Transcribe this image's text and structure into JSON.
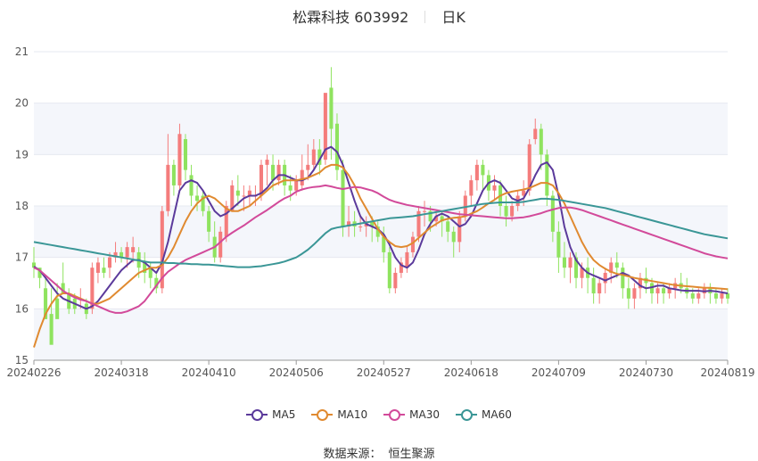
{
  "header": {
    "name": "松霖科技 603992",
    "period": "日K"
  },
  "legend": [
    {
      "label": "MA5",
      "color": "#5b3a9b"
    },
    {
      "label": "MA10",
      "color": "#e08a30"
    },
    {
      "label": "MA30",
      "color": "#d24a9a"
    },
    {
      "label": "MA60",
      "color": "#3a9696"
    }
  ],
  "source": {
    "label": "数据来源：",
    "value": "恒生聚源"
  },
  "colors": {
    "up": "#f47c7c",
    "down": "#8fe35f",
    "grid": "#e6e9f0",
    "band": "#f4f6fb"
  },
  "chart_data": {
    "type": "candlestick",
    "ylim": [
      15,
      21
    ],
    "yticks": [
      15,
      16,
      17,
      18,
      19,
      20,
      21
    ],
    "xticks": [
      "20240226",
      "20240318",
      "20240410",
      "20240506",
      "20240527",
      "20240618",
      "20240709",
      "20240730",
      "20240819"
    ],
    "xtick_index": [
      0,
      15,
      30,
      45,
      60,
      75,
      90,
      105,
      119
    ],
    "n_days": 120,
    "candles": [
      [
        16.9,
        17.2,
        16.8,
        16.6
      ],
      [
        16.8,
        16.8,
        16.6,
        16.4
      ],
      [
        16.4,
        16.6,
        15.8,
        15.8
      ],
      [
        15.9,
        16.4,
        15.3,
        15.4
      ],
      [
        16.2,
        16.5,
        15.8,
        16.0
      ],
      [
        16.5,
        16.9,
        16.3,
        16.4
      ],
      [
        16.3,
        16.4,
        16.0,
        15.9
      ],
      [
        16.2,
        16.3,
        16.0,
        15.9
      ],
      [
        16.2,
        16.4,
        16.2,
        16.0
      ],
      [
        16.1,
        16.2,
        15.9,
        15.8
      ],
      [
        16.0,
        16.9,
        16.8,
        15.9
      ],
      [
        16.7,
        17.0,
        16.9,
        16.5
      ],
      [
        16.8,
        17.0,
        16.7,
        16.6
      ],
      [
        16.8,
        17.1,
        17.0,
        16.6
      ],
      [
        17.0,
        17.3,
        17.1,
        16.9
      ],
      [
        17.1,
        17.2,
        17.0,
        16.9
      ],
      [
        17.0,
        17.3,
        17.2,
        16.8
      ],
      [
        17.1,
        17.4,
        17.2,
        16.9
      ],
      [
        17.1,
        17.2,
        16.8,
        16.6
      ],
      [
        16.9,
        17.1,
        16.7,
        16.5
      ],
      [
        16.8,
        16.9,
        16.6,
        16.4
      ],
      [
        16.6,
        16.7,
        16.4,
        16.3
      ],
      [
        16.4,
        18.0,
        17.9,
        16.3
      ],
      [
        17.9,
        19.4,
        18.8,
        17.8
      ],
      [
        18.8,
        18.9,
        18.4,
        18.2
      ],
      [
        18.4,
        19.6,
        19.4,
        18.3
      ],
      [
        19.3,
        19.4,
        18.7,
        18.5
      ],
      [
        18.6,
        18.8,
        18.2,
        18.0
      ],
      [
        18.2,
        18.4,
        18.1,
        17.9
      ],
      [
        18.2,
        18.3,
        17.9,
        17.8
      ],
      [
        17.9,
        18.0,
        17.5,
        17.3
      ],
      [
        17.4,
        17.7,
        17.0,
        16.9
      ],
      [
        17.0,
        17.6,
        17.5,
        16.9
      ],
      [
        17.4,
        18.1,
        18.0,
        17.3
      ],
      [
        17.9,
        18.5,
        18.4,
        17.9
      ],
      [
        18.3,
        18.6,
        18.2,
        18.0
      ],
      [
        18.2,
        18.4,
        18.2,
        17.9
      ],
      [
        18.2,
        18.4,
        18.3,
        18.0
      ],
      [
        18.2,
        18.4,
        18.2,
        18.0
      ],
      [
        18.2,
        18.9,
        18.8,
        18.1
      ],
      [
        18.8,
        19.0,
        18.9,
        18.4
      ],
      [
        18.8,
        19.0,
        18.5,
        18.3
      ],
      [
        18.5,
        18.9,
        18.8,
        18.4
      ],
      [
        18.8,
        18.9,
        18.4,
        18.2
      ],
      [
        18.4,
        18.6,
        18.3,
        18.1
      ],
      [
        18.3,
        18.6,
        18.5,
        18.2
      ],
      [
        18.4,
        19.0,
        18.7,
        18.3
      ],
      [
        18.7,
        19.2,
        18.8,
        18.5
      ],
      [
        18.8,
        19.3,
        19.1,
        18.7
      ],
      [
        19.1,
        19.3,
        18.8,
        18.6
      ],
      [
        18.9,
        20.0,
        20.2,
        18.8
      ],
      [
        20.3,
        20.7,
        19.5,
        18.9
      ],
      [
        19.6,
        19.8,
        18.7,
        18.5
      ],
      [
        18.7,
        18.9,
        17.6,
        17.4
      ],
      [
        17.6,
        18.0,
        17.7,
        17.4
      ],
      [
        17.7,
        17.9,
        17.6,
        17.4
      ],
      [
        17.6,
        17.8,
        17.6,
        17.5
      ],
      [
        17.6,
        17.8,
        17.7,
        17.4
      ],
      [
        17.7,
        17.8,
        17.6,
        17.3
      ],
      [
        17.6,
        17.7,
        17.4,
        17.3
      ],
      [
        17.4,
        17.6,
        17.1,
        16.9
      ],
      [
        17.1,
        17.2,
        16.4,
        16.3
      ],
      [
        16.4,
        16.8,
        16.7,
        16.3
      ],
      [
        16.7,
        17.0,
        16.9,
        16.6
      ],
      [
        16.8,
        17.2,
        17.1,
        16.7
      ],
      [
        17.1,
        17.5,
        17.4,
        17.0
      ],
      [
        17.4,
        18.0,
        17.9,
        17.3
      ],
      [
        17.9,
        18.1,
        17.9,
        17.6
      ],
      [
        17.9,
        18.0,
        17.7,
        17.5
      ],
      [
        17.7,
        17.9,
        17.8,
        17.6
      ],
      [
        17.8,
        17.9,
        17.7,
        17.4
      ],
      [
        17.7,
        17.8,
        17.5,
        17.3
      ],
      [
        17.5,
        17.6,
        17.3,
        17.0
      ],
      [
        17.3,
        17.9,
        17.8,
        17.1
      ],
      [
        17.8,
        18.3,
        18.2,
        17.7
      ],
      [
        18.2,
        18.6,
        18.5,
        18.0
      ],
      [
        18.5,
        18.9,
        18.8,
        18.3
      ],
      [
        18.8,
        18.9,
        18.6,
        18.3
      ],
      [
        18.6,
        18.7,
        18.3,
        18.1
      ],
      [
        18.3,
        18.6,
        18.4,
        18.1
      ],
      [
        18.4,
        18.5,
        18.0,
        17.8
      ],
      [
        18.0,
        18.2,
        17.8,
        17.6
      ],
      [
        17.8,
        18.1,
        18.0,
        17.7
      ],
      [
        18.0,
        18.3,
        18.2,
        17.9
      ],
      [
        18.2,
        18.5,
        18.3,
        18.0
      ],
      [
        18.3,
        19.3,
        19.2,
        18.2
      ],
      [
        19.3,
        19.7,
        19.5,
        19.2
      ],
      [
        19.5,
        19.6,
        19.0,
        18.7
      ],
      [
        19.0,
        19.1,
        18.2,
        18.0
      ],
      [
        18.2,
        18.3,
        17.5,
        17.3
      ],
      [
        17.5,
        17.7,
        17.0,
        16.7
      ],
      [
        17.0,
        17.3,
        16.8,
        16.6
      ],
      [
        16.8,
        17.1,
        17.0,
        16.5
      ],
      [
        17.0,
        17.1,
        16.6,
        16.4
      ],
      [
        16.6,
        16.9,
        16.8,
        16.4
      ],
      [
        16.8,
        17.0,
        16.6,
        16.3
      ],
      [
        16.6,
        16.8,
        16.3,
        16.1
      ],
      [
        16.3,
        16.6,
        16.5,
        16.1
      ],
      [
        16.5,
        16.8,
        16.7,
        16.3
      ],
      [
        16.7,
        17.0,
        16.9,
        16.5
      ],
      [
        16.9,
        17.1,
        16.8,
        16.6
      ],
      [
        16.8,
        16.9,
        16.4,
        16.2
      ],
      [
        16.4,
        16.6,
        16.2,
        16.0
      ],
      [
        16.2,
        16.5,
        16.4,
        16.0
      ],
      [
        16.4,
        16.7,
        16.6,
        16.2
      ],
      [
        16.6,
        16.8,
        16.5,
        16.3
      ],
      [
        16.5,
        16.6,
        16.3,
        16.1
      ],
      [
        16.3,
        16.5,
        16.4,
        16.1
      ],
      [
        16.4,
        16.5,
        16.3,
        16.1
      ],
      [
        16.3,
        16.5,
        16.4,
        16.2
      ],
      [
        16.4,
        16.6,
        16.5,
        16.2
      ],
      [
        16.5,
        16.7,
        16.4,
        16.3
      ],
      [
        16.4,
        16.6,
        16.3,
        16.2
      ],
      [
        16.3,
        16.4,
        16.2,
        16.1
      ],
      [
        16.2,
        16.4,
        16.3,
        16.1
      ],
      [
        16.3,
        16.5,
        16.4,
        16.2
      ],
      [
        16.4,
        16.5,
        16.3,
        16.1
      ],
      [
        16.3,
        16.4,
        16.2,
        16.1
      ],
      [
        16.2,
        16.4,
        16.3,
        16.1
      ],
      [
        16.3,
        16.4,
        16.2,
        16.1
      ]
    ],
    "series": [
      {
        "name": "MA5",
        "values": [
          16.82,
          16.75,
          16.6,
          16.45,
          16.3,
          16.2,
          16.15,
          16.1,
          16.05,
          16.0,
          16.05,
          16.15,
          16.3,
          16.45,
          16.6,
          16.75,
          16.85,
          16.95,
          16.95,
          16.9,
          16.8,
          16.7,
          16.9,
          17.3,
          17.8,
          18.3,
          18.45,
          18.5,
          18.45,
          18.3,
          18.1,
          17.9,
          17.8,
          17.85,
          17.95,
          18.05,
          18.15,
          18.2,
          18.2,
          18.25,
          18.35,
          18.5,
          18.6,
          18.6,
          18.55,
          18.5,
          18.5,
          18.55,
          18.7,
          18.9,
          19.1,
          19.15,
          19.05,
          18.8,
          18.45,
          18.1,
          17.8,
          17.65,
          17.6,
          17.55,
          17.45,
          17.25,
          17.0,
          16.85,
          16.8,
          16.9,
          17.15,
          17.45,
          17.65,
          17.8,
          17.85,
          17.8,
          17.7,
          17.6,
          17.65,
          17.8,
          18.05,
          18.3,
          18.45,
          18.5,
          18.45,
          18.3,
          18.15,
          18.1,
          18.15,
          18.35,
          18.6,
          18.8,
          18.85,
          18.7,
          18.2,
          17.6,
          17.2,
          16.95,
          16.8,
          16.7,
          16.65,
          16.6,
          16.55,
          16.6,
          16.65,
          16.7,
          16.65,
          16.55,
          16.45,
          16.4,
          16.42,
          16.45,
          16.45,
          16.4,
          16.38,
          16.36,
          16.35,
          16.35,
          16.35,
          16.34,
          16.35,
          16.34,
          16.32,
          16.3
        ]
      },
      {
        "name": "MA10",
        "values": [
          15.25,
          15.6,
          15.9,
          16.1,
          16.25,
          16.3,
          16.3,
          16.25,
          16.2,
          16.15,
          16.1,
          16.1,
          16.15,
          16.2,
          16.3,
          16.4,
          16.5,
          16.6,
          16.7,
          16.75,
          16.8,
          16.8,
          16.85,
          17.0,
          17.2,
          17.45,
          17.7,
          17.9,
          18.05,
          18.15,
          18.2,
          18.15,
          18.05,
          17.95,
          17.9,
          17.9,
          17.95,
          18.0,
          18.1,
          18.2,
          18.3,
          18.4,
          18.45,
          18.5,
          18.5,
          18.5,
          18.52,
          18.55,
          18.6,
          18.65,
          18.75,
          18.8,
          18.8,
          18.75,
          18.6,
          18.4,
          18.15,
          17.95,
          17.75,
          17.55,
          17.4,
          17.3,
          17.22,
          17.2,
          17.22,
          17.28,
          17.38,
          17.48,
          17.58,
          17.65,
          17.72,
          17.75,
          17.77,
          17.78,
          17.8,
          17.85,
          17.9,
          17.97,
          18.05,
          18.12,
          18.2,
          18.25,
          18.28,
          18.3,
          18.32,
          18.35,
          18.4,
          18.45,
          18.45,
          18.4,
          18.25,
          18.05,
          17.8,
          17.55,
          17.3,
          17.1,
          16.95,
          16.85,
          16.78,
          16.72,
          16.68,
          16.66,
          16.63,
          16.6,
          16.58,
          16.56,
          16.54,
          16.52,
          16.5,
          16.48,
          16.46,
          16.45,
          16.44,
          16.43,
          16.42,
          16.41,
          16.41,
          16.4,
          16.39,
          16.38
        ]
      },
      {
        "name": "MA30",
        "values": [
          16.8,
          16.75,
          16.65,
          16.55,
          16.45,
          16.35,
          16.28,
          16.22,
          16.18,
          16.15,
          16.1,
          16.05,
          16.0,
          15.95,
          15.92,
          15.92,
          15.95,
          16.0,
          16.05,
          16.15,
          16.3,
          16.45,
          16.6,
          16.72,
          16.8,
          16.88,
          16.95,
          17.0,
          17.05,
          17.1,
          17.15,
          17.2,
          17.3,
          17.4,
          17.48,
          17.55,
          17.62,
          17.7,
          17.78,
          17.85,
          17.92,
          18.0,
          18.08,
          18.15,
          18.2,
          18.28,
          18.32,
          18.35,
          18.37,
          18.38,
          18.4,
          18.38,
          18.35,
          18.33,
          18.35,
          18.37,
          18.36,
          18.33,
          18.3,
          18.25,
          18.18,
          18.12,
          18.08,
          18.05,
          18.02,
          18.0,
          17.98,
          17.96,
          17.94,
          17.92,
          17.9,
          17.88,
          17.86,
          17.84,
          17.83,
          17.82,
          17.81,
          17.8,
          17.79,
          17.78,
          17.77,
          17.76,
          17.76,
          17.77,
          17.78,
          17.8,
          17.83,
          17.86,
          17.9,
          17.93,
          17.96,
          17.97,
          17.97,
          17.95,
          17.92,
          17.88,
          17.84,
          17.8,
          17.76,
          17.72,
          17.68,
          17.64,
          17.6,
          17.56,
          17.52,
          17.48,
          17.44,
          17.4,
          17.36,
          17.32,
          17.28,
          17.24,
          17.2,
          17.16,
          17.12,
          17.08,
          17.05,
          17.02,
          17.0,
          16.98
        ]
      },
      {
        "name": "MA60",
        "values": [
          17.3,
          17.28,
          17.26,
          17.24,
          17.22,
          17.2,
          17.18,
          17.16,
          17.14,
          17.12,
          17.1,
          17.08,
          17.06,
          17.04,
          17.02,
          17.0,
          16.98,
          16.96,
          16.94,
          16.92,
          16.9,
          16.9,
          16.9,
          16.89,
          16.89,
          16.88,
          16.88,
          16.87,
          16.87,
          16.86,
          16.86,
          16.85,
          16.84,
          16.83,
          16.82,
          16.81,
          16.81,
          16.81,
          16.82,
          16.83,
          16.85,
          16.87,
          16.89,
          16.92,
          16.96,
          17.0,
          17.07,
          17.15,
          17.25,
          17.36,
          17.47,
          17.55,
          17.58,
          17.6,
          17.62,
          17.64,
          17.66,
          17.68,
          17.7,
          17.72,
          17.74,
          17.76,
          17.77,
          17.78,
          17.79,
          17.8,
          17.82,
          17.84,
          17.86,
          17.88,
          17.9,
          17.92,
          17.94,
          17.96,
          17.98,
          18.0,
          18.02,
          18.04,
          18.05,
          18.06,
          18.07,
          18.07,
          18.07,
          18.07,
          18.08,
          18.1,
          18.12,
          18.14,
          18.14,
          18.13,
          18.12,
          18.1,
          18.08,
          18.06,
          18.04,
          18.02,
          18.0,
          17.98,
          17.96,
          17.93,
          17.9,
          17.87,
          17.84,
          17.81,
          17.78,
          17.75,
          17.72,
          17.69,
          17.66,
          17.63,
          17.6,
          17.57,
          17.54,
          17.51,
          17.48,
          17.45,
          17.43,
          17.41,
          17.39,
          17.37
        ]
      }
    ]
  }
}
